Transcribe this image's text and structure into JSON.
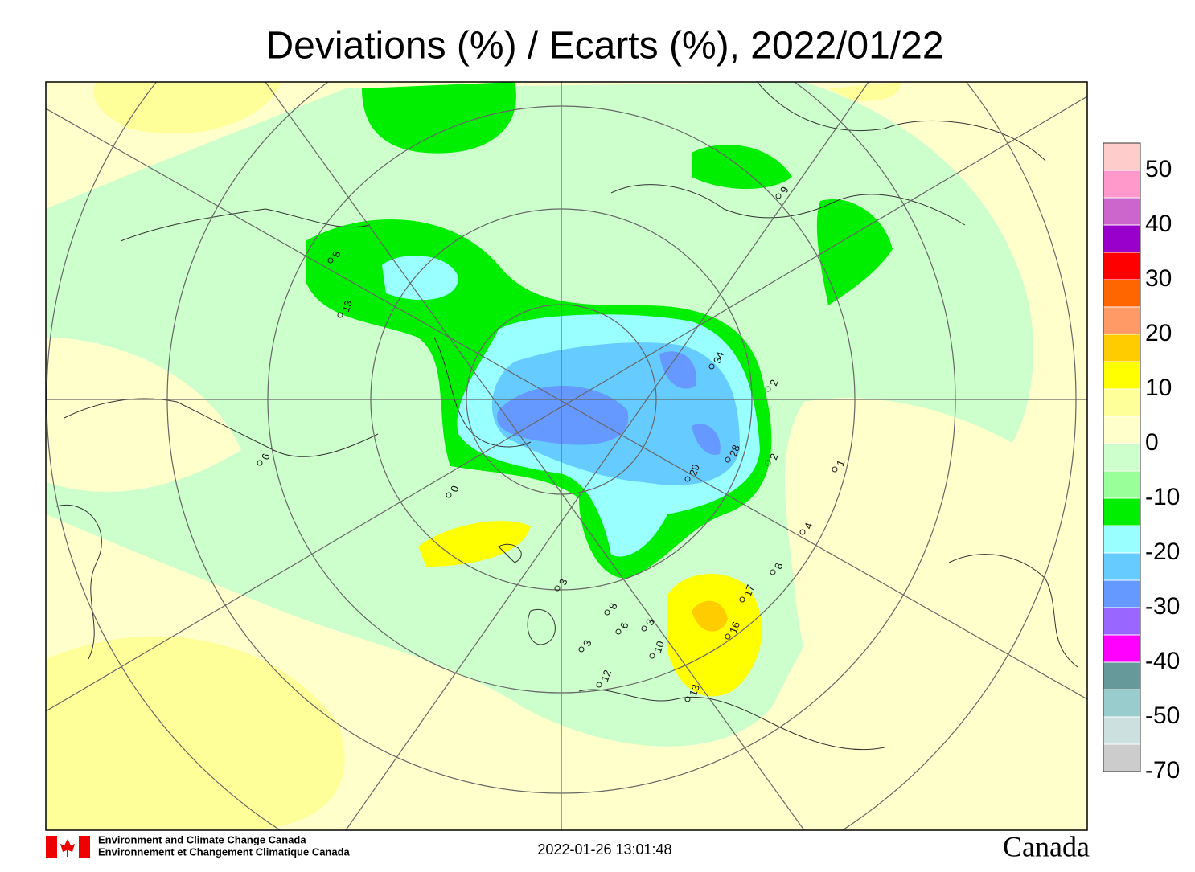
{
  "title": "Deviations (%) / Ecarts (%), 2022/01/22",
  "colorbar": {
    "colors": [
      "#ffcccc",
      "#ff99cc",
      "#cc66cc",
      "#9900cc",
      "#ff0000",
      "#ff6600",
      "#ff9966",
      "#ffcc00",
      "#ffff00",
      "#ffff99",
      "#ffffcc",
      "#ccffcc",
      "#99ff99",
      "#00ee00",
      "#99ffff",
      "#66ccff",
      "#6699ff",
      "#9966ff",
      "#ff00ff",
      "#669999",
      "#99cccc",
      "#cce0e0",
      "#cccccc"
    ],
    "labels": [
      50,
      40,
      30,
      20,
      10,
      0,
      -10,
      -20,
      -30,
      -40,
      -50,
      -70
    ]
  },
  "stations": [
    "8",
    "13",
    "34",
    "2",
    "28",
    "29",
    "2",
    "1",
    "4",
    "8",
    "17",
    "16",
    "13",
    "12",
    "3",
    "3",
    "6",
    "8",
    "3",
    "10",
    "0",
    "6",
    "9"
  ],
  "footer": {
    "agency_en": "Environment and Climate Change Canada",
    "agency_fr": "Environnement et Changement Climatique Canada",
    "timestamp": "2022-01-26 13:01:48",
    "wordmark": "Canada"
  }
}
